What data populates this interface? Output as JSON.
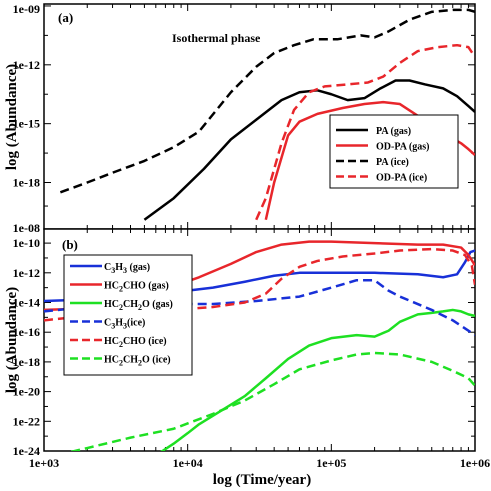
{
  "xlabel": "log (Time/year)",
  "chart_data": [
    {
      "panel": "(a)",
      "type": "line",
      "annotation": "Isothermal phase",
      "ylabel": "log (Abundance)",
      "xscale": "log",
      "yscale": "log",
      "xlim": [
        1000,
        1000000
      ],
      "ylim": [
        1e-08,
        1e-09
      ],
      "y_tick_labels": [
        "1e-09",
        "1e-12",
        "1e-15",
        "1e-18",
        "1e-08"
      ],
      "legend_position": "lower-right",
      "series": [
        {
          "name": "PA (gas)",
          "color": "#000000",
          "dash": "solid",
          "points": [
            [
              5000,
              -19.9
            ],
            [
              8000,
              -18.8
            ],
            [
              13000,
              -17.3
            ],
            [
              20000,
              -15.8
            ],
            [
              30000,
              -14.8
            ],
            [
              45000,
              -13.8
            ],
            [
              60000,
              -13.4
            ],
            [
              80000,
              -13.3
            ],
            [
              100000,
              -13.5
            ],
            [
              130000,
              -13.8
            ],
            [
              170000,
              -13.7
            ],
            [
              220000,
              -13.2
            ],
            [
              280000,
              -12.8
            ],
            [
              350000,
              -12.8
            ],
            [
              450000,
              -13.0
            ],
            [
              600000,
              -13.2
            ],
            [
              750000,
              -13.6
            ],
            [
              900000,
              -14.1
            ],
            [
              1000000,
              -14.4
            ]
          ]
        },
        {
          "name": "OD-PA (gas)",
          "color": "#e8262b",
          "dash": "solid",
          "points": [
            [
              35000,
              -19.9
            ],
            [
              40000,
              -18.0
            ],
            [
              50000,
              -15.6
            ],
            [
              60000,
              -14.9
            ],
            [
              80000,
              -14.5
            ],
            [
              120000,
              -14.2
            ],
            [
              170000,
              -14.0
            ],
            [
              230000,
              -13.9
            ],
            [
              300000,
              -14.0
            ],
            [
              400000,
              -14.6
            ],
            [
              500000,
              -15.1
            ],
            [
              650000,
              -15.6
            ],
            [
              800000,
              -16.0
            ],
            [
              900000,
              -16.3
            ],
            [
              1000000,
              -16.6
            ]
          ]
        },
        {
          "name": "PA (ice)",
          "color": "#000000",
          "dash": "dashed",
          "points": [
            [
              1300,
              -18.5
            ],
            [
              2000,
              -18.0
            ],
            [
              3000,
              -17.5
            ],
            [
              5000,
              -16.9
            ],
            [
              8000,
              -16.2
            ],
            [
              12000,
              -15.4
            ],
            [
              20000,
              -13.4
            ],
            [
              30000,
              -12.1
            ],
            [
              40000,
              -11.4
            ],
            [
              55000,
              -11.0
            ],
            [
              75000,
              -10.7
            ],
            [
              110000,
              -10.7
            ],
            [
              160000,
              -10.5
            ],
            [
              200000,
              -10.6
            ],
            [
              250000,
              -10.3
            ],
            [
              350000,
              -9.7
            ],
            [
              500000,
              -9.3
            ],
            [
              700000,
              -9.2
            ],
            [
              900000,
              -9.2
            ],
            [
              1000000,
              -9.3
            ]
          ]
        },
        {
          "name": "OD-PA (ice)",
          "color": "#e8262b",
          "dash": "dashed",
          "points": [
            [
              30000,
              -19.9
            ],
            [
              35000,
              -18.8
            ],
            [
              45000,
              -16.0
            ],
            [
              55000,
              -14.3
            ],
            [
              70000,
              -13.4
            ],
            [
              90000,
              -13.1
            ],
            [
              130000,
              -13.0
            ],
            [
              180000,
              -12.9
            ],
            [
              230000,
              -12.6
            ],
            [
              300000,
              -11.9
            ],
            [
              400000,
              -11.3
            ],
            [
              550000,
              -11.1
            ],
            [
              750000,
              -11.0
            ],
            [
              900000,
              -11.1
            ],
            [
              1000000,
              -11.6
            ]
          ]
        }
      ]
    },
    {
      "panel": "(b)",
      "type": "line",
      "ylabel": "log (Abundance)",
      "xscale": "log",
      "yscale": "log",
      "xlim": [
        1000,
        1000000
      ],
      "ylim": [
        1e-24,
        1e-09
      ],
      "x_tick_labels": [
        "1e+03",
        "1e+04",
        "1e+05",
        "1e+06"
      ],
      "y_tick_labels": [
        "1e-10",
        "1e-12",
        "1e-14",
        "1e-16",
        "1e-18",
        "1e-20",
        "1e-22",
        "1e-24"
      ],
      "legend_position": "top-left",
      "series": [
        {
          "name_parts": [
            "C",
            "3",
            "H",
            "3",
            " (gas)"
          ],
          "color": "#1830d8",
          "dash": "solid",
          "points": [
            [
              1000,
              -13.9
            ],
            [
              2000,
              -13.8
            ],
            [
              4000,
              -13.5
            ],
            [
              7000,
              -13.3
            ],
            [
              10000,
              -13.2
            ],
            [
              15000,
              -13.0
            ],
            [
              25000,
              -12.6
            ],
            [
              40000,
              -12.2
            ],
            [
              60000,
              -12.0
            ],
            [
              100000,
              -12.0
            ],
            [
              200000,
              -12.0
            ],
            [
              400000,
              -12.1
            ],
            [
              600000,
              -12.3
            ],
            [
              750000,
              -12.1
            ],
            [
              850000,
              -11.3
            ],
            [
              930000,
              -10.6
            ],
            [
              1000000,
              -10.5
            ]
          ]
        },
        {
          "name_parts": [
            "HC",
            "2",
            "CHO (gas)"
          ],
          "color": "#e8262b",
          "dash": "solid",
          "points": [
            [
              1000,
              -14.5
            ],
            [
              2000,
              -14.4
            ],
            [
              3000,
              -14.0
            ],
            [
              5000,
              -13.5
            ],
            [
              8000,
              -12.9
            ],
            [
              12000,
              -12.3
            ],
            [
              20000,
              -11.4
            ],
            [
              30000,
              -10.6
            ],
            [
              45000,
              -10.1
            ],
            [
              70000,
              -9.9
            ],
            [
              100000,
              -9.9
            ],
            [
              200000,
              -10.0
            ],
            [
              400000,
              -10.1
            ],
            [
              600000,
              -10.1
            ],
            [
              800000,
              -10.3
            ],
            [
              900000,
              -10.8
            ],
            [
              1000000,
              -11.5
            ]
          ]
        },
        {
          "name_parts": [
            "HC",
            "2",
            "CH",
            "2",
            "O (gas)"
          ],
          "color": "#1ee022",
          "dash": "solid",
          "points": [
            [
              6000,
              -24.3
            ],
            [
              8000,
              -23.5
            ],
            [
              10000,
              -22.8
            ],
            [
              12000,
              -22.2
            ],
            [
              17000,
              -21.3
            ],
            [
              25000,
              -20.3
            ],
            [
              35000,
              -19.1
            ],
            [
              50000,
              -17.8
            ],
            [
              70000,
              -16.9
            ],
            [
              100000,
              -16.4
            ],
            [
              150000,
              -16.2
            ],
            [
              200000,
              -16.3
            ],
            [
              250000,
              -15.9
            ],
            [
              300000,
              -15.3
            ],
            [
              400000,
              -14.8
            ],
            [
              500000,
              -14.7
            ],
            [
              600000,
              -14.6
            ],
            [
              700000,
              -14.5
            ],
            [
              800000,
              -14.6
            ],
            [
              900000,
              -14.8
            ],
            [
              1000000,
              -14.9
            ]
          ]
        },
        {
          "name_parts": [
            "C",
            "3",
            "H",
            "3",
            "(ice)"
          ],
          "color": "#1830d8",
          "dash": "dashed",
          "points": [
            [
              1000,
              -14.6
            ],
            [
              2000,
              -14.3
            ],
            [
              4000,
              -14.1
            ],
            [
              8000,
              -14.1
            ],
            [
              15000,
              -14.1
            ],
            [
              30000,
              -13.9
            ],
            [
              60000,
              -13.6
            ],
            [
              100000,
              -13.0
            ],
            [
              150000,
              -12.5
            ],
            [
              200000,
              -12.5
            ],
            [
              250000,
              -13.2
            ],
            [
              300000,
              -13.6
            ],
            [
              500000,
              -14.5
            ],
            [
              700000,
              -15.2
            ],
            [
              900000,
              -15.9
            ],
            [
              1000000,
              -16.2
            ]
          ]
        },
        {
          "name_parts": [
            "HC",
            "2",
            "CHO (ice)"
          ],
          "color": "#e8262b",
          "dash": "dashed",
          "points": [
            [
              1000,
              -15.2
            ],
            [
              2000,
              -14.9
            ],
            [
              4000,
              -14.6
            ],
            [
              8000,
              -14.5
            ],
            [
              15000,
              -14.3
            ],
            [
              25000,
              -14.0
            ],
            [
              35000,
              -13.4
            ],
            [
              45000,
              -12.4
            ],
            [
              60000,
              -11.6
            ],
            [
              80000,
              -11.2
            ],
            [
              120000,
              -10.9
            ],
            [
              200000,
              -10.7
            ],
            [
              300000,
              -10.5
            ],
            [
              500000,
              -10.4
            ],
            [
              700000,
              -10.5
            ],
            [
              850000,
              -10.8
            ],
            [
              950000,
              -11.5
            ],
            [
              1000000,
              -12.8
            ]
          ]
        },
        {
          "name_parts": [
            "HC",
            "2",
            "CH",
            "2",
            "O (ice)"
          ],
          "color": "#1ee022",
          "dash": "dashed",
          "points": [
            [
              1000,
              -24.5
            ],
            [
              2000,
              -23.8
            ],
            [
              4000,
              -23.1
            ],
            [
              8000,
              -22.5
            ],
            [
              15000,
              -21.5
            ],
            [
              25000,
              -20.6
            ],
            [
              40000,
              -19.5
            ],
            [
              60000,
              -18.5
            ],
            [
              100000,
              -17.9
            ],
            [
              150000,
              -17.5
            ],
            [
              200000,
              -17.4
            ],
            [
              300000,
              -17.5
            ],
            [
              500000,
              -18.0
            ],
            [
              700000,
              -18.6
            ],
            [
              900000,
              -19.1
            ],
            [
              1000000,
              -19.6
            ]
          ]
        }
      ]
    }
  ]
}
